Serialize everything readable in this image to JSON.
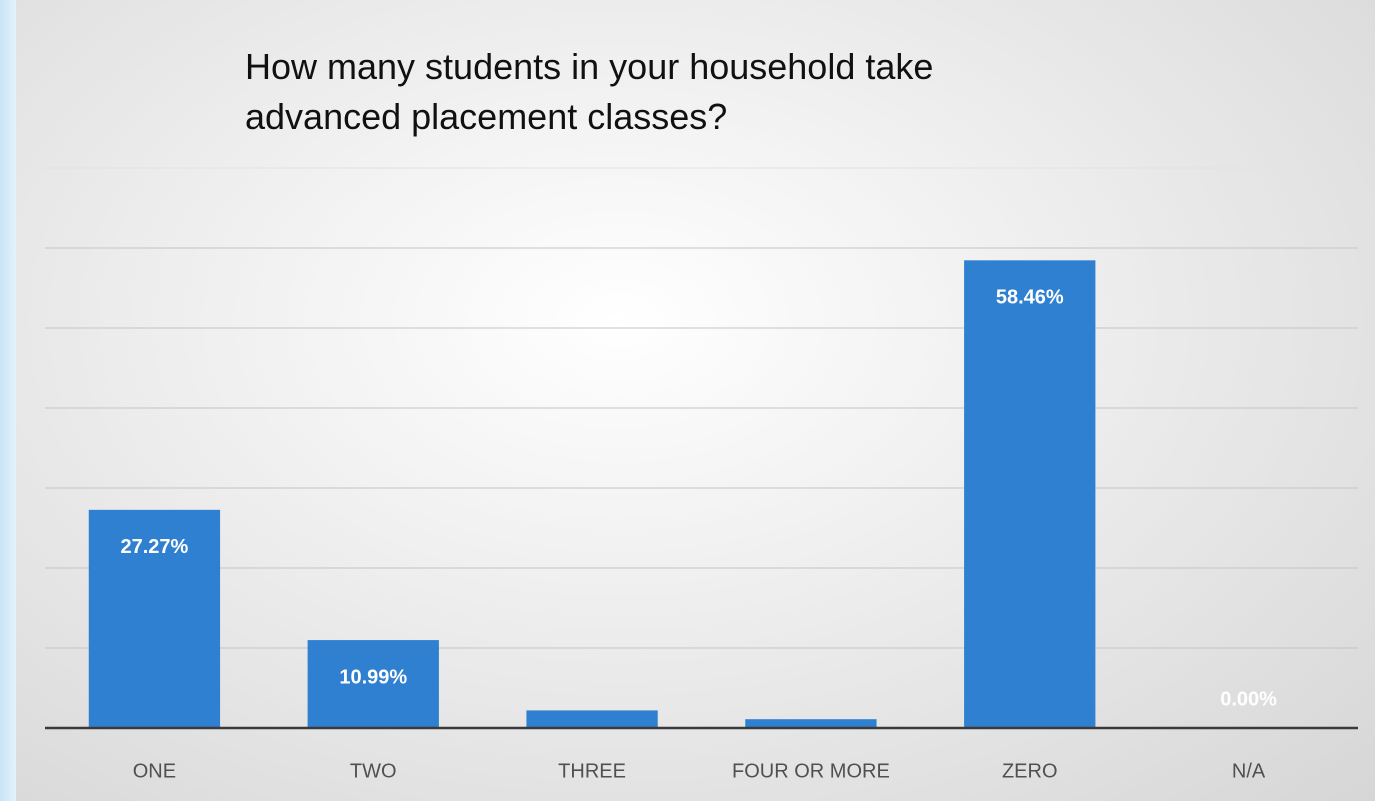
{
  "chart_data": {
    "type": "bar",
    "title": "How many students in your household take advanced placement classes?",
    "categories": [
      "ONE",
      "TWO",
      "THREE",
      "FOUR OR MORE",
      "ZERO",
      "N/A"
    ],
    "values": [
      27.27,
      10.99,
      2.2,
      1.1,
      58.46,
      0
    ],
    "value_labels": [
      "27.27%",
      "10.99%",
      null,
      null,
      "58.46%",
      "0.00%"
    ],
    "color": "#2f80d0",
    "ylim": [
      0,
      70
    ],
    "yticks": [
      0,
      10,
      20,
      30,
      40,
      50,
      60,
      70
    ],
    "grid": true
  }
}
